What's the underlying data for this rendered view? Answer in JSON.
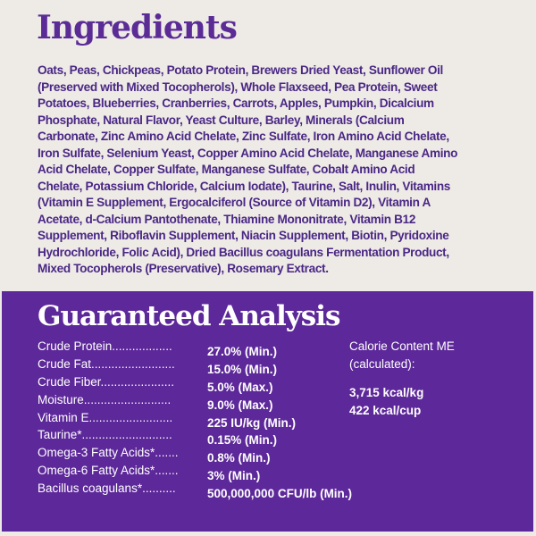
{
  "ingredients": {
    "title": "Ingredients",
    "lines": [
      "Oats, Peas, Chickpeas, Potato Protein, Brewers Dried Yeast, Sunflower Oil",
      "(Preserved with Mixed Tocopherols), Whole Flaxseed, Pea Protein, Sweet",
      "Potatoes, Blueberries, Cranberries, Carrots, Apples, Pumpkin, Dicalcium",
      "Phosphate, Natural Flavor, Yeast Culture, Barley, Minerals (Calcium",
      "Carbonate, Zinc Amino Acid Chelate, Zinc Sulfate, Iron Amino Acid Chelate,",
      "Iron Sulfate, Selenium Yeast, Copper Amino Acid Chelate, Manganese Amino",
      "Acid Chelate, Copper Sulfate, Manganese Sulfate, Cobalt Amino Acid",
      "Chelate, Potassium Chloride, Calcium Iodate), Taurine, Salt, Inulin, Vitamins",
      "(Vitamin E Supplement, Ergocalciferol (Source of Vitamin D2), Vitamin A",
      "Acetate, d-Calcium Pantothenate, Thiamine Mononitrate, Vitamin B12",
      "Supplement, Riboflavin Supplement, Niacin Supplement, Biotin, Pyridoxine",
      "Hydrochloride, Folic Acid), Dried Bacillus coagulans Fermentation Product,",
      "Mixed Tocopherols (Preservative), Rosemary Extract."
    ]
  },
  "analysis": {
    "title": "Guaranteed Analysis",
    "rows": [
      {
        "label": "Crude  Protein..................",
        "value": "27.0% (Min.)"
      },
      {
        "label": "Crude  Fat.........................",
        "value": "15.0% (Min.)"
      },
      {
        "label": "Crude  Fiber......................",
        "value": "5.0% (Max.)"
      },
      {
        "label": "Moisture..........................",
        "value": "9.0% (Max.)"
      },
      {
        "label": "Vitamin  E.........................",
        "value": "225 IU/kg (Min.)"
      },
      {
        "label": "Taurine*...........................",
        "value": "0.15% (Min.)"
      },
      {
        "label": "Omega-3 Fatty Acids*.......",
        "value": "0.8% (Min.)"
      },
      {
        "label": "Omega-6 Fatty Acids*.......",
        "value": "3% (Min.)"
      },
      {
        "label": "Bacillus  coagulans*..........",
        "value": "500,000,000 CFU/lb (Min.)"
      }
    ],
    "calorie": {
      "label_line1": "Calorie Content ME",
      "label_line2": "(calculated):",
      "per_kg": "3,715 kcal/kg",
      "per_cup": "422 kcal/cup"
    }
  },
  "colors": {
    "background": "#eeebe6",
    "purple": "#5d2899",
    "ingredients_text": "#4a2785"
  }
}
